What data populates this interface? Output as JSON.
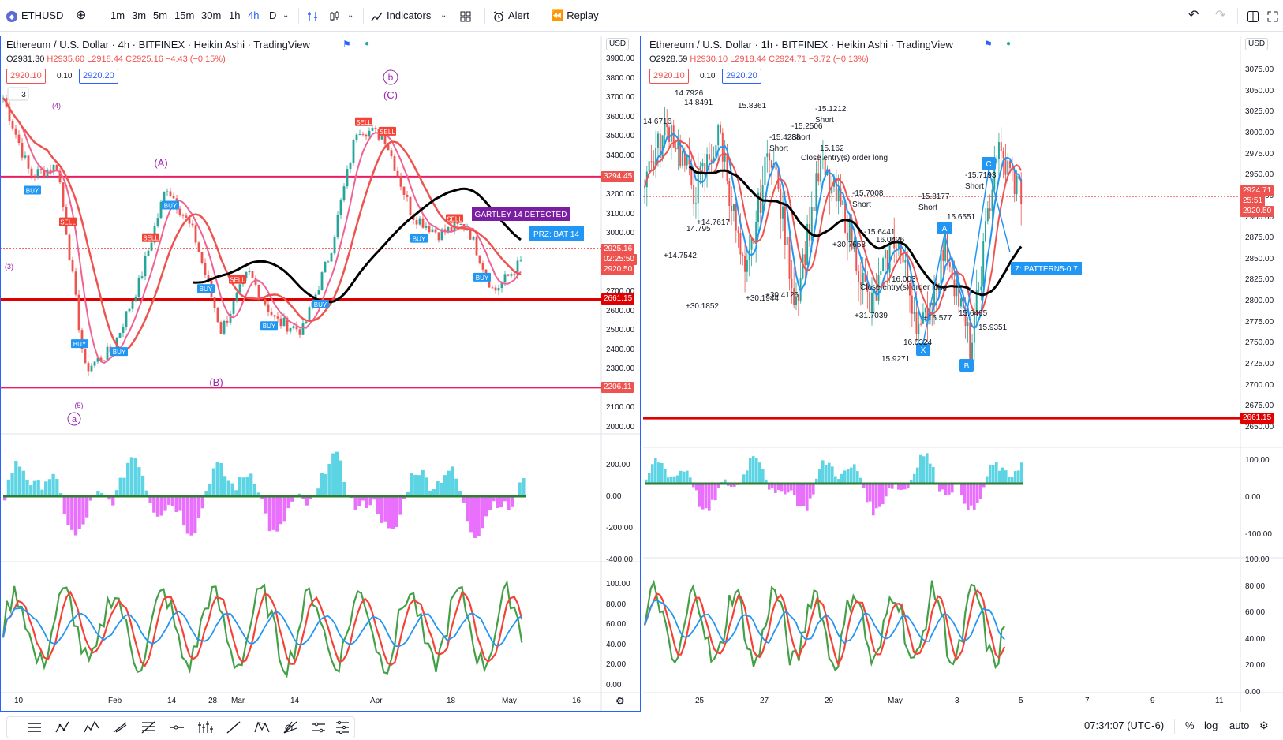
{
  "topbar": {
    "symbol": "ETHUSD",
    "intervals": [
      "1m",
      "3m",
      "5m",
      "15m",
      "30m",
      "1h",
      "4h",
      "D"
    ],
    "active_interval": "4h",
    "indicators_label": "Indicators",
    "alert_label": "Alert",
    "replay_label": "Replay"
  },
  "left": {
    "title": "Ethereum / U.S. Dollar · 4h · BITFINEX · Heikin Ashi · TradingView",
    "ohlc": {
      "o": "O2931.30",
      "h": "H2935.60",
      "l": "L2918.44",
      "c": "C2925.16",
      "chg": "−4.43 (−0.15%)"
    },
    "sell_price": "2920.10",
    "spread": "0.10",
    "buy_price": "2920.20",
    "currency": "USD",
    "price_axis": [
      "3900.00",
      "3800.00",
      "3700.00",
      "3600.00",
      "3500.00",
      "3400.00",
      "3300.00",
      "3200.00",
      "3100.00",
      "3000.00",
      "2900.00",
      "2800.00",
      "2700.00",
      "2600.00",
      "2500.00",
      "2400.00",
      "2300.00",
      "2200.00",
      "2100.00",
      "2000.00"
    ],
    "price_labels": [
      {
        "text": "3294.45",
        "color": "#ef5350"
      },
      {
        "text": "2925.16",
        "color": "#ef5350"
      },
      {
        "text": "02:25:50",
        "color": "#ef5350"
      },
      {
        "text": "2920.50",
        "color": "#ef5350"
      },
      {
        "text": "2661.15",
        "color": "#e00000"
      },
      {
        "text": "2206.11",
        "color": "#ef5350"
      }
    ],
    "osc_axis": [
      "200.00",
      "0.00",
      "-200.00",
      "-400.00"
    ],
    "rsi_axis": [
      "100.00",
      "80.00",
      "60.00",
      "40.00",
      "20.00",
      "0.00"
    ],
    "time_axis": [
      "10",
      "Feb",
      "14",
      "28",
      "Mar",
      "14",
      "Apr",
      "18",
      "May",
      "16"
    ],
    "gartley_label": "GARTLEY 14 DETECTED",
    "prz_label": "PRZ: BAT 14",
    "waves": [
      "(4)",
      "(3)",
      "(5)",
      "a",
      "b",
      "(C)",
      "(A)",
      "(B)",
      "3"
    ]
  },
  "right": {
    "title": "Ethereum / U.S. Dollar · 1h · BITFINEX · Heikin Ashi · TradingView",
    "ohlc": {
      "o": "O2928.59",
      "h": "H2930.10",
      "l": "L2918.44",
      "c": "C2924.71",
      "chg": "−3.72 (−0.13%)"
    },
    "sell_price": "2920.10",
    "spread": "0.10",
    "buy_price": "2920.20",
    "currency": "USD",
    "price_axis": [
      "3075.00",
      "3050.00",
      "3025.00",
      "3000.00",
      "2975.00",
      "2950.00",
      "2925.00",
      "2900.00",
      "2875.00",
      "2850.00",
      "2825.00",
      "2800.00",
      "2775.00",
      "2750.00",
      "2725.00",
      "2700.00",
      "2675.00",
      "2650.00"
    ],
    "price_labels": [
      {
        "text": "2924.71",
        "color": "#ef5350"
      },
      {
        "text": "25:51",
        "color": "#ef5350"
      },
      {
        "text": "2920.50",
        "color": "#ef5350"
      },
      {
        "text": "2661.15",
        "color": "#e00000"
      }
    ],
    "osc_axis": [
      "100.00",
      "0.00",
      "-100.00"
    ],
    "rsi_axis": [
      "100.00",
      "80.00",
      "60.00",
      "40.00",
      "20.00",
      "0.00"
    ],
    "time_axis": [
      "25",
      "27",
      "29",
      "May",
      "3",
      "5",
      "7",
      "9",
      "11"
    ],
    "prz_label": "Z: PATTERN5-0 7",
    "points": [
      "C",
      "A",
      "X",
      "B"
    ],
    "annotations": [
      "-15.1212",
      "Short",
      "-15.2506",
      "Short",
      "-15.4288",
      "Short",
      "15.162",
      "Close entry(s) order long",
      "-15.7008",
      "Short",
      "-15.8177",
      "Short",
      "-15.7193",
      "Short",
      "15.6551",
      "-15.6441",
      "16.0426",
      "16.003",
      "16.0324",
      "15.9271",
      "+31.7039",
      "+30.7653",
      "+30.4126",
      "+30.1944",
      "+30.1852",
      "+14.7542",
      "+14.7617",
      "14.795",
      "14.6716",
      "15.8361",
      "14.8491",
      "14.7926",
      "15.6465",
      "15.9351",
      "+15.577",
      "Close entry(s) order long"
    ]
  },
  "bottombar": {
    "time": "07:34:07 (UTC-6)",
    "percent": "%",
    "log": "log",
    "auto": "auto"
  }
}
